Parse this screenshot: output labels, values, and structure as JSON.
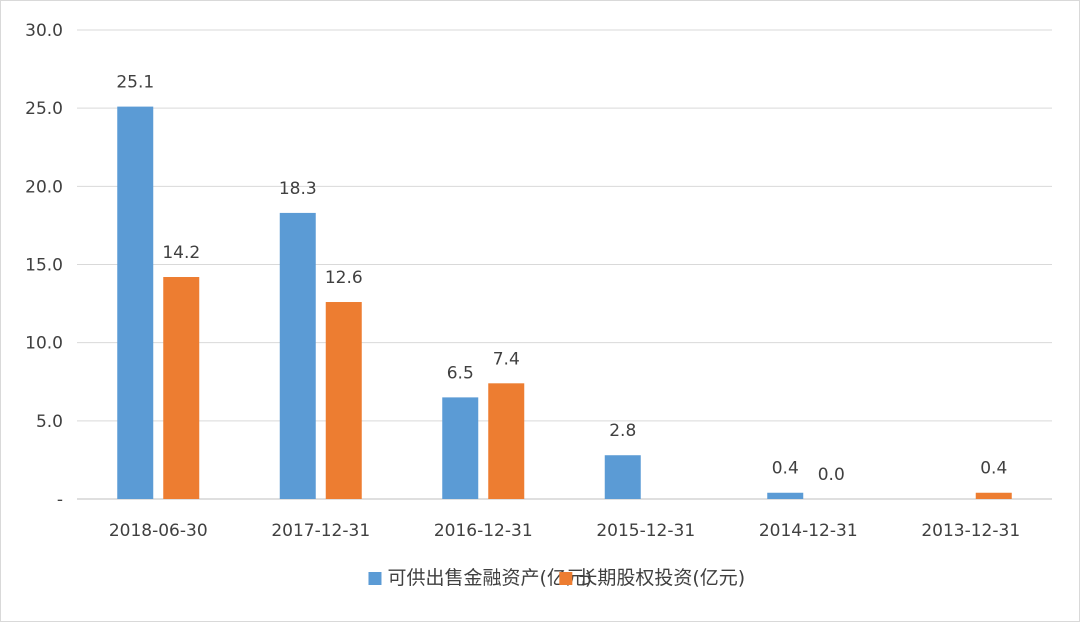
{
  "chart_data": {
    "type": "bar",
    "categories": [
      "2018-06-30",
      "2017-12-31",
      "2016-12-31",
      "2015-12-31",
      "2014-12-31",
      "2013-12-31"
    ],
    "series": [
      {
        "name": "可供出售金融资产(亿元)",
        "color": "#5b9bd5",
        "values": [
          25.1,
          18.3,
          6.5,
          2.8,
          0.4,
          null
        ],
        "labels": [
          "25.1",
          "18.3",
          "6.5",
          "2.8",
          "0.4",
          ""
        ]
      },
      {
        "name": "长期股权投资(亿元)",
        "color": "#ed7d31",
        "values": [
          14.2,
          12.6,
          7.4,
          null,
          0.0,
          0.4
        ],
        "labels": [
          "14.2",
          "12.6",
          "7.4",
          "",
          "0.0",
          "0.4"
        ]
      }
    ],
    "ylim": [
      0,
      30
    ],
    "yticks": [
      0,
      5,
      10,
      15,
      20,
      25,
      30
    ],
    "ytick_labels": [
      "-",
      "5.0",
      "10.0",
      "15.0",
      "20.0",
      "25.0",
      "30.0"
    ],
    "grid": true,
    "legend_position": "bottom",
    "title": "",
    "xlabel": "",
    "ylabel": ""
  }
}
